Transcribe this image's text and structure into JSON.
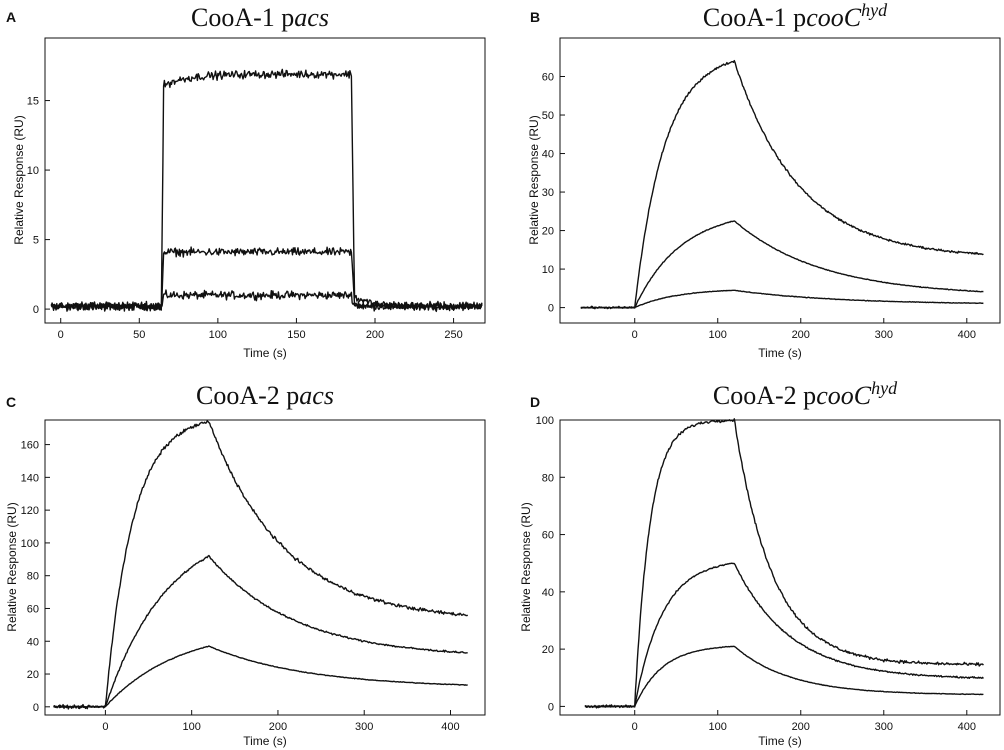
{
  "figure": {
    "background": "#ffffff",
    "line_color": "#111111"
  },
  "chart_data": [
    {
      "id": "A",
      "letter": "A",
      "title": "CooA-1 p",
      "title_italic": "acs",
      "title_sup": "",
      "type": "line",
      "xlabel": "Time (s)",
      "ylabel": "Relative Response (RU)",
      "xlim": [
        -10,
        270
      ],
      "ylim": [
        -1,
        19.5
      ],
      "xticks": [
        0,
        50,
        100,
        150,
        200,
        250
      ],
      "yticks": [
        0,
        5,
        10,
        15
      ],
      "curve_model": "square",
      "t_on": 64,
      "t_off": 185,
      "x_end": 268,
      "noise": 0.28,
      "series": [
        {
          "name": "trace-1",
          "plateau": 1.0
        },
        {
          "name": "trace-2",
          "plateau": 4.1
        },
        {
          "name": "trace-3",
          "plateau": 16.9,
          "initial_jump": 16.0
        }
      ]
    },
    {
      "id": "B",
      "letter": "B",
      "title": "CooA-1 p",
      "title_italic": "cooC",
      "title_sup": "hyd",
      "type": "line",
      "xlabel": "Time (s)",
      "ylabel": "Relative Response (RU)",
      "xlim": [
        -90,
        440
      ],
      "ylim": [
        -4,
        70
      ],
      "xticks": [
        0,
        100,
        200,
        300,
        400
      ],
      "yticks": [
        0,
        10,
        20,
        30,
        40,
        50,
        60
      ],
      "curve_model": "association-dissociation",
      "x_start": -65,
      "t_inject": 0,
      "t_end_inject": 120,
      "x_end": 420,
      "noise": 0.25,
      "series": [
        {
          "name": "low",
          "peak": 4.5,
          "final": 0.8,
          "k_on": 0.02,
          "k_off": 0.006
        },
        {
          "name": "mid",
          "peak": 22.5,
          "final": 3.0,
          "k_on": 0.018,
          "k_off": 0.007
        },
        {
          "name": "high",
          "peak": 64.0,
          "final": 12.8,
          "k_on": 0.028,
          "k_off": 0.0095
        }
      ]
    },
    {
      "id": "C",
      "letter": "C",
      "title": "CooA-2 p",
      "title_italic": "acs",
      "title_sup": "",
      "type": "line",
      "xlabel": "Time (s)",
      "ylabel": "Relative Response (RU)",
      "xlim": [
        -70,
        440
      ],
      "ylim": [
        -5,
        175
      ],
      "xticks": [
        0,
        100,
        200,
        300,
        400
      ],
      "yticks": [
        0,
        20,
        40,
        60,
        80,
        100,
        120,
        140,
        160
      ],
      "curve_model": "association-dissociation",
      "x_start": -60,
      "t_inject": 0,
      "t_end_inject": 120,
      "x_end": 420,
      "noise": 0.35,
      "series": [
        {
          "name": "low",
          "peak": 37.0,
          "final": 11.5,
          "k_on": 0.012,
          "k_off": 0.0065
        },
        {
          "name": "mid",
          "peak": 92.0,
          "final": 30.0,
          "k_on": 0.014,
          "k_off": 0.0075
        },
        {
          "name": "high",
          "peak": 174.0,
          "final": 52.0,
          "k_on": 0.032,
          "k_off": 0.0085
        }
      ]
    },
    {
      "id": "D",
      "letter": "D",
      "title": "CooA-2 p",
      "title_italic": "cooC",
      "title_sup": "hyd",
      "type": "line",
      "xlabel": "Time (s)",
      "ylabel": "Relative Response (RU)",
      "xlim": [
        -90,
        440
      ],
      "ylim": [
        -3,
        100
      ],
      "xticks": [
        0,
        100,
        200,
        300,
        400
      ],
      "yticks": [
        0,
        20,
        40,
        60,
        80,
        100
      ],
      "curve_model": "association-dissociation",
      "x_start": -60,
      "t_inject": 0,
      "t_end_inject": 120,
      "x_end": 420,
      "noise": 0.3,
      "series": [
        {
          "name": "low",
          "peak": 21.0,
          "final": 4.0,
          "k_on": 0.03,
          "k_off": 0.011
        },
        {
          "name": "mid",
          "peak": 50.0,
          "final": 9.5,
          "k_on": 0.03,
          "k_off": 0.011
        },
        {
          "name": "high",
          "peak": 100.0,
          "final": 14.5,
          "k_on": 0.055,
          "k_off": 0.016
        }
      ]
    }
  ]
}
